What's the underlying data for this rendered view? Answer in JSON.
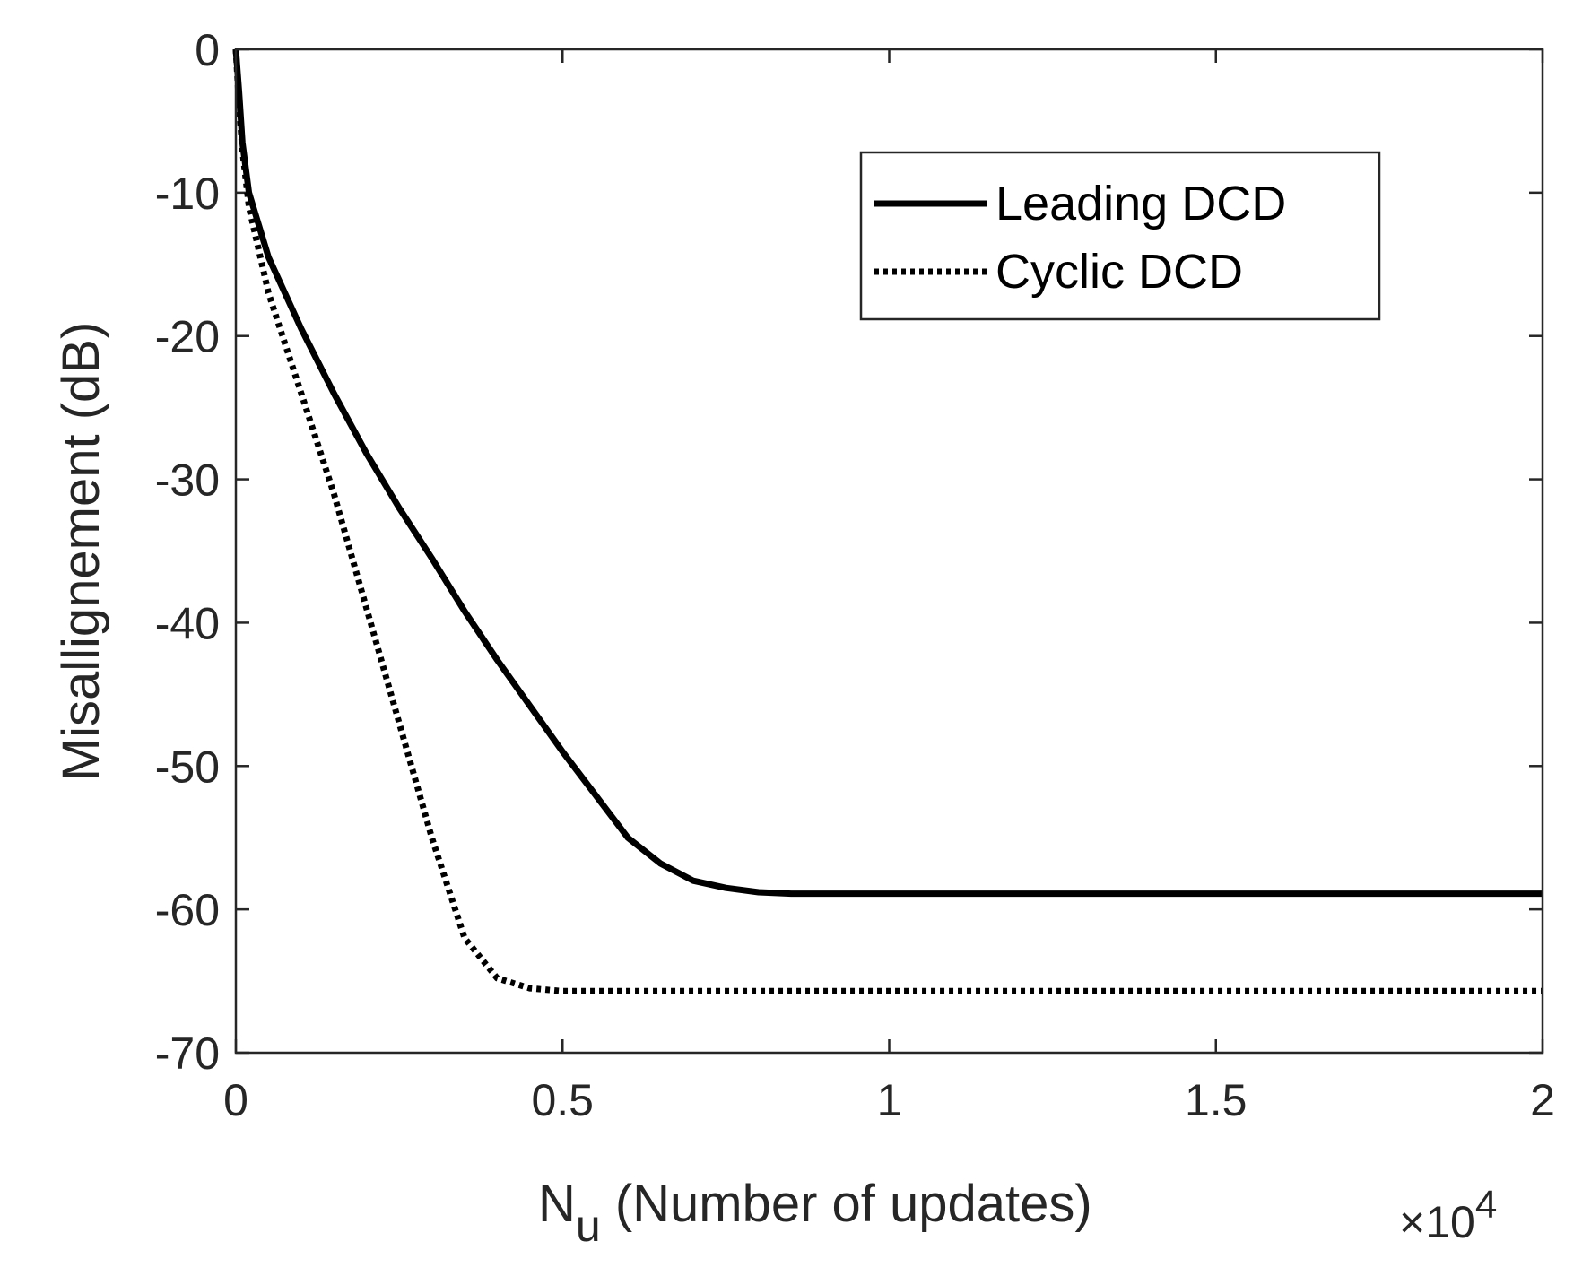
{
  "chart_data": {
    "type": "line",
    "xlabel": "N",
    "xlabel_subscript": "u",
    "xlabel_rest": " (Number of updates)",
    "ylabel": "Misallignement (dB)",
    "x_exponent_label": "×10",
    "x_exponent_power": "4",
    "xlim": [
      0,
      2
    ],
    "ylim": [
      -70,
      0
    ],
    "xticks": [
      0,
      0.5,
      1,
      1.5,
      2
    ],
    "xtick_labels": [
      "0",
      "0.5",
      "1",
      "1.5",
      "2"
    ],
    "yticks": [
      0,
      -10,
      -20,
      -30,
      -40,
      -50,
      -60,
      -70
    ],
    "ytick_labels": [
      "0",
      "-10",
      "-20",
      "-30",
      "-40",
      "-50",
      "-60",
      "-70"
    ],
    "grid": false,
    "legend_position": "top-right",
    "series": [
      {
        "name": "Leading DCD",
        "style": "solid",
        "color": "#000000",
        "x": [
          0,
          0.005,
          0.01,
          0.02,
          0.05,
          0.1,
          0.15,
          0.2,
          0.25,
          0.3,
          0.35,
          0.4,
          0.45,
          0.5,
          0.55,
          0.6,
          0.65,
          0.7,
          0.75,
          0.8,
          0.85,
          0.9,
          0.95,
          1.0,
          1.05,
          1.1,
          1.2,
          1.4,
          1.6,
          1.8,
          2.0
        ],
        "y": [
          0,
          -3,
          -6.5,
          -10,
          -14.5,
          -19.5,
          -24,
          -28.2,
          -32,
          -35.5,
          -39.2,
          -42.6,
          -45.8,
          -49,
          -52,
          -55,
          -56.8,
          -58,
          -58.5,
          -58.8,
          -58.9,
          -58.9,
          -58.9,
          -58.9,
          -58.9,
          -58.9,
          -58.9,
          -58.9,
          -58.9,
          -58.9,
          -58.9
        ]
      },
      {
        "name": "Cyclic DCD",
        "style": "dotted",
        "color": "#000000",
        "x": [
          0,
          0.005,
          0.01,
          0.02,
          0.05,
          0.1,
          0.15,
          0.2,
          0.25,
          0.3,
          0.35,
          0.4,
          0.45,
          0.5,
          0.53,
          0.55,
          0.57,
          0.6,
          0.7,
          0.8,
          1.0,
          1.2,
          1.4,
          1.6,
          1.8,
          2.0
        ],
        "y": [
          0,
          -4,
          -7,
          -11,
          -17,
          -24,
          -31,
          -39,
          -47,
          -55,
          -62,
          -64.8,
          -65.5,
          -65.7,
          -65.7,
          -65.7,
          -65.7,
          -65.7,
          -65.7,
          -65.7,
          -65.7,
          -65.7,
          -65.7,
          -65.7,
          -65.7,
          -65.7
        ]
      }
    ]
  }
}
